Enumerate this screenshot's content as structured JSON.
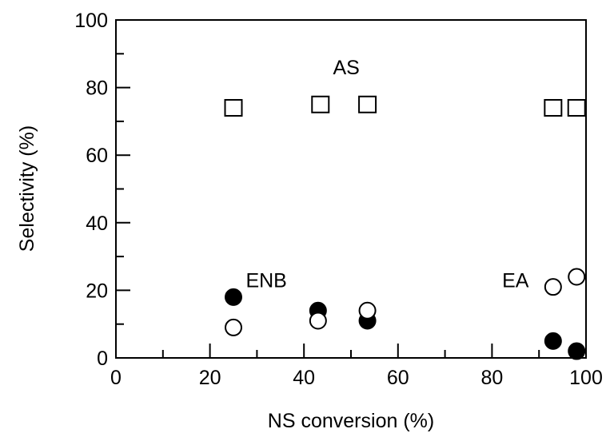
{
  "chart_data": {
    "type": "scatter",
    "xlabel": "NS conversion (%)",
    "ylabel": "Selectivity (%)",
    "xlim": [
      0,
      100
    ],
    "ylim": [
      0,
      100
    ],
    "x_ticks": [
      "0",
      "20",
      "40",
      "60",
      "80",
      "100"
    ],
    "y_ticks": [
      "0",
      "20",
      "40",
      "60",
      "80",
      "100"
    ],
    "grid": false,
    "series": [
      {
        "marker": "open-square",
        "points": [
          {
            "x": 25,
            "y": 74
          },
          {
            "x": 43.5,
            "y": 75
          },
          {
            "x": 53.5,
            "y": 75
          },
          {
            "x": 93,
            "y": 74
          },
          {
            "x": 98,
            "y": 74
          }
        ]
      },
      {
        "marker": "filled-circle",
        "points": [
          {
            "x": 25,
            "y": 18
          },
          {
            "x": 43,
            "y": 14
          },
          {
            "x": 53.5,
            "y": 11
          },
          {
            "x": 93,
            "y": 5
          },
          {
            "x": 98,
            "y": 2
          }
        ]
      },
      {
        "marker": "open-circle",
        "points": [
          {
            "x": 25,
            "y": 9
          },
          {
            "x": 43,
            "y": 11
          },
          {
            "x": 53.5,
            "y": 14
          },
          {
            "x": 93,
            "y": 21
          },
          {
            "x": 98,
            "y": 24
          }
        ]
      }
    ],
    "annotations": [
      {
        "text": "AS",
        "x": 49,
        "y": 86
      },
      {
        "text": "ENB",
        "x": 32,
        "y": 23
      },
      {
        "text": "EA",
        "x": 85,
        "y": 23
      }
    ]
  }
}
